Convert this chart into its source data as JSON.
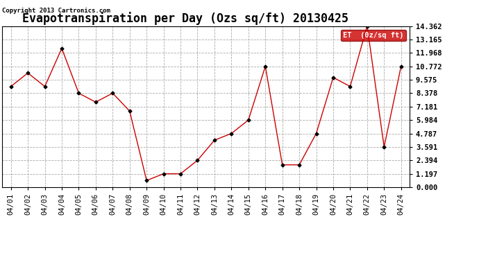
{
  "title": "Evapotranspiration per Day (Ozs sq/ft) 20130425",
  "copyright": "Copyright 2013 Cartronics.com",
  "legend_label": "ET  (0z/sq ft)",
  "x_labels": [
    "04/01",
    "04/02",
    "04/03",
    "04/04",
    "04/05",
    "04/06",
    "04/07",
    "04/08",
    "04/09",
    "04/10",
    "04/11",
    "04/12",
    "04/13",
    "04/14",
    "04/15",
    "04/16",
    "04/17",
    "04/18",
    "04/19",
    "04/20",
    "04/21",
    "04/22",
    "04/23",
    "04/24"
  ],
  "y_values": [
    8.976,
    10.175,
    8.976,
    12.367,
    8.378,
    7.58,
    8.378,
    6.783,
    0.598,
    1.197,
    1.197,
    2.394,
    4.188,
    4.787,
    5.984,
    10.772,
    1.994,
    1.994,
    4.787,
    9.774,
    8.976,
    14.362,
    3.591,
    10.772
  ],
  "y_ticks": [
    0.0,
    1.197,
    2.394,
    3.591,
    4.787,
    5.984,
    7.181,
    8.378,
    9.575,
    10.772,
    11.968,
    13.165,
    14.362
  ],
  "y_min": 0.0,
  "y_max": 14.362,
  "line_color": "#cc0000",
  "marker_color": "#000000",
  "background_color": "#ffffff",
  "grid_color": "#aaaaaa",
  "legend_bg": "#cc0000",
  "legend_fg": "#ffffff",
  "title_fontsize": 12,
  "tick_fontsize": 7.5,
  "copyright_fontsize": 6.5,
  "legend_fontsize": 7.5
}
